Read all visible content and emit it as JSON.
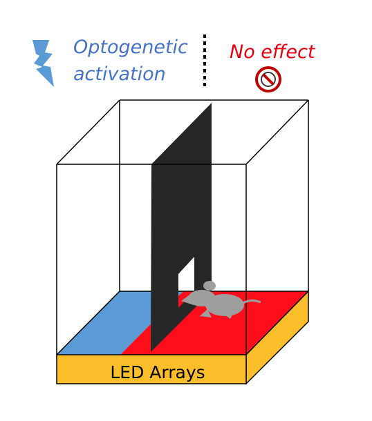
{
  "legend": {
    "left_label_line1": "Optogenetic",
    "left_label_line2": "activation",
    "right_label": "No effect",
    "left_icon": "lightning-bolt-icon",
    "right_icon": "prohibited-icon"
  },
  "base": {
    "label": "LED Arrays"
  },
  "colors": {
    "blue_text": "#4472c4",
    "red_text": "#e8000f",
    "bolt": "#5b9bd5",
    "floor_blue": "#5b9bd5",
    "floor_red": "#ff0d1a",
    "wall": "#262626",
    "led_base": "#fdbe2b",
    "mouse": "#9e9e9e",
    "prohibit_ring": "#c00000"
  }
}
